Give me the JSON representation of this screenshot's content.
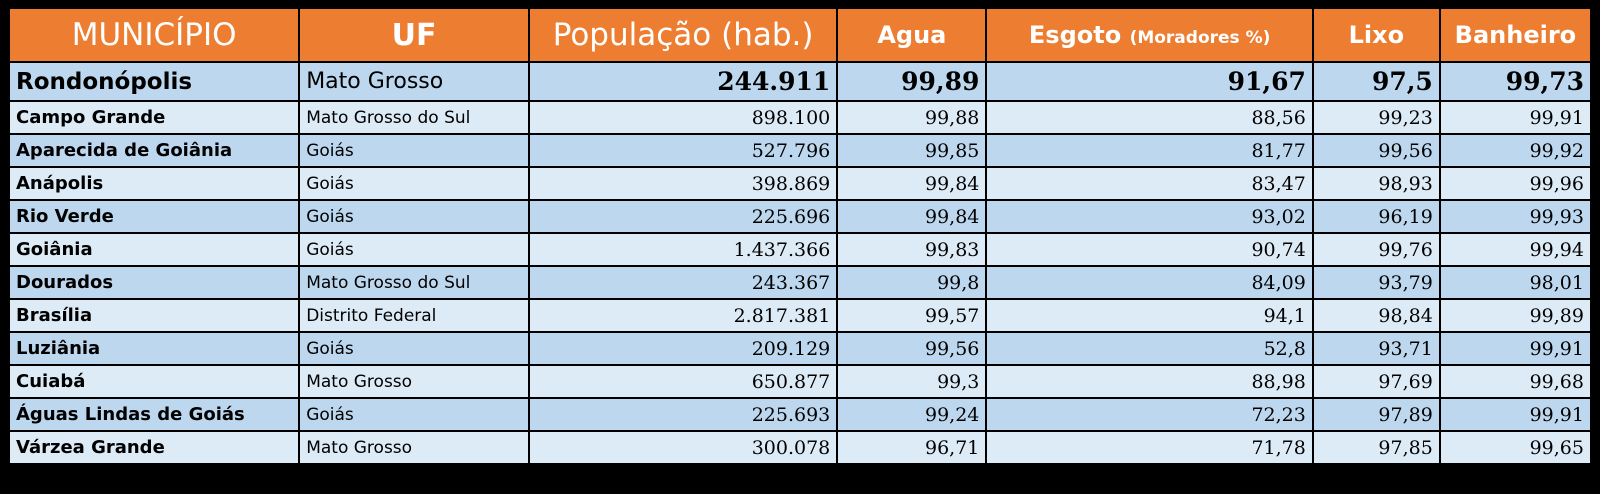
{
  "table": {
    "headers": {
      "municipio": "MUNICÍPIO",
      "uf": "UF",
      "populacao": "População (hab.)",
      "agua": "Agua",
      "esgoto": "Esgoto",
      "esgoto_unit": "(Moradores %)",
      "lixo": "Lixo",
      "banheiro": "Banheiro"
    },
    "highlight": {
      "municipio": "Rondonópolis",
      "uf": "Mato Grosso",
      "populacao": "244.911",
      "agua": "99,89",
      "esgoto": "91,67",
      "lixo": "97,5",
      "banheiro": "99,73"
    },
    "rows": [
      {
        "municipio": "Campo Grande",
        "uf": "Mato Grosso do Sul",
        "populacao": "898.100",
        "agua": "99,88",
        "esgoto": "88,56",
        "lixo": "99,23",
        "banheiro": "99,91"
      },
      {
        "municipio": "Aparecida de Goiânia",
        "uf": "Goiás",
        "populacao": "527.796",
        "agua": "99,85",
        "esgoto": "81,77",
        "lixo": "99,56",
        "banheiro": "99,92"
      },
      {
        "municipio": "Anápolis",
        "uf": "Goiás",
        "populacao": "398.869",
        "agua": "99,84",
        "esgoto": "83,47",
        "lixo": "98,93",
        "banheiro": "99,96"
      },
      {
        "municipio": "Rio Verde",
        "uf": "Goiás",
        "populacao": "225.696",
        "agua": "99,84",
        "esgoto": "93,02",
        "lixo": "96,19",
        "banheiro": "99,93"
      },
      {
        "municipio": "Goiânia",
        "uf": "Goiás",
        "populacao": "1.437.366",
        "agua": "99,83",
        "esgoto": "90,74",
        "lixo": "99,76",
        "banheiro": "99,94"
      },
      {
        "municipio": "Dourados",
        "uf": "Mato Grosso do Sul",
        "populacao": "243.367",
        "agua": "99,8",
        "esgoto": "84,09",
        "lixo": "93,79",
        "banheiro": "98,01"
      },
      {
        "municipio": "Brasília",
        "uf": "Distrito Federal",
        "populacao": "2.817.381",
        "agua": "99,57",
        "esgoto": "94,1",
        "lixo": "98,84",
        "banheiro": "99,89"
      },
      {
        "municipio": "Luziânia",
        "uf": "Goiás",
        "populacao": "209.129",
        "agua": "99,56",
        "esgoto": "52,8",
        "lixo": "93,71",
        "banheiro": "99,91"
      },
      {
        "municipio": "Cuiabá",
        "uf": "Mato Grosso",
        "populacao": "650.877",
        "agua": "99,3",
        "esgoto": "88,98",
        "lixo": "97,69",
        "banheiro": "99,68"
      },
      {
        "municipio": "Águas Lindas de Goiás",
        "uf": "Goiás",
        "populacao": "225.693",
        "agua": "99,24",
        "esgoto": "72,23",
        "lixo": "97,89",
        "banheiro": "99,91"
      },
      {
        "municipio": "Várzea Grande",
        "uf": "Mato Grosso",
        "populacao": "300.078",
        "agua": "96,71",
        "esgoto": "71,78",
        "lixo": "97,85",
        "banheiro": "99,65"
      }
    ]
  }
}
